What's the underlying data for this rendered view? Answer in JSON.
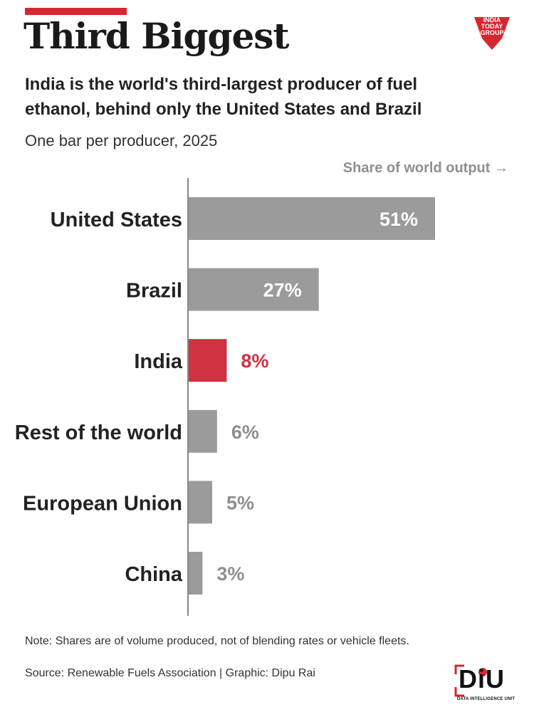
{
  "header": {
    "title": "Third Biggest",
    "subtitle": "India is the world's third-largest producer of fuel ethanol, behind only the United States and Brazil",
    "subnote": "One bar per producer, 2025"
  },
  "logo": {
    "text": "INDIA TODAY GROUP",
    "color": "#d7262f"
  },
  "chart_data": {
    "type": "bar",
    "orientation": "horizontal",
    "axis_note": "Share of world output →",
    "categories": [
      "United States",
      "Brazil",
      "India",
      "Rest of the world",
      "European Union",
      "China"
    ],
    "values": [
      51,
      27,
      8,
      6,
      5,
      3
    ],
    "labels": [
      "51%",
      "27%",
      "8%",
      "6%",
      "5%",
      "3%"
    ],
    "highlight": "India",
    "colors": {
      "default": "#9b9b9b",
      "highlight": "#cf3240",
      "label_inside": "#ffffff",
      "label_outside": "#8f8f8f",
      "axis": "#888888",
      "category_text": "#222222"
    },
    "xlim": [
      0,
      51
    ],
    "grid": false
  },
  "footer": {
    "note": "Note: Shares are of volume produced, not of blending rates or vehicle fleets.",
    "source": "Source: Renewable Fuels Association | Graphic: Dipu Rai",
    "brand": "DiU",
    "brand_caption": "DATA INTELLIGENCE UNIT"
  }
}
